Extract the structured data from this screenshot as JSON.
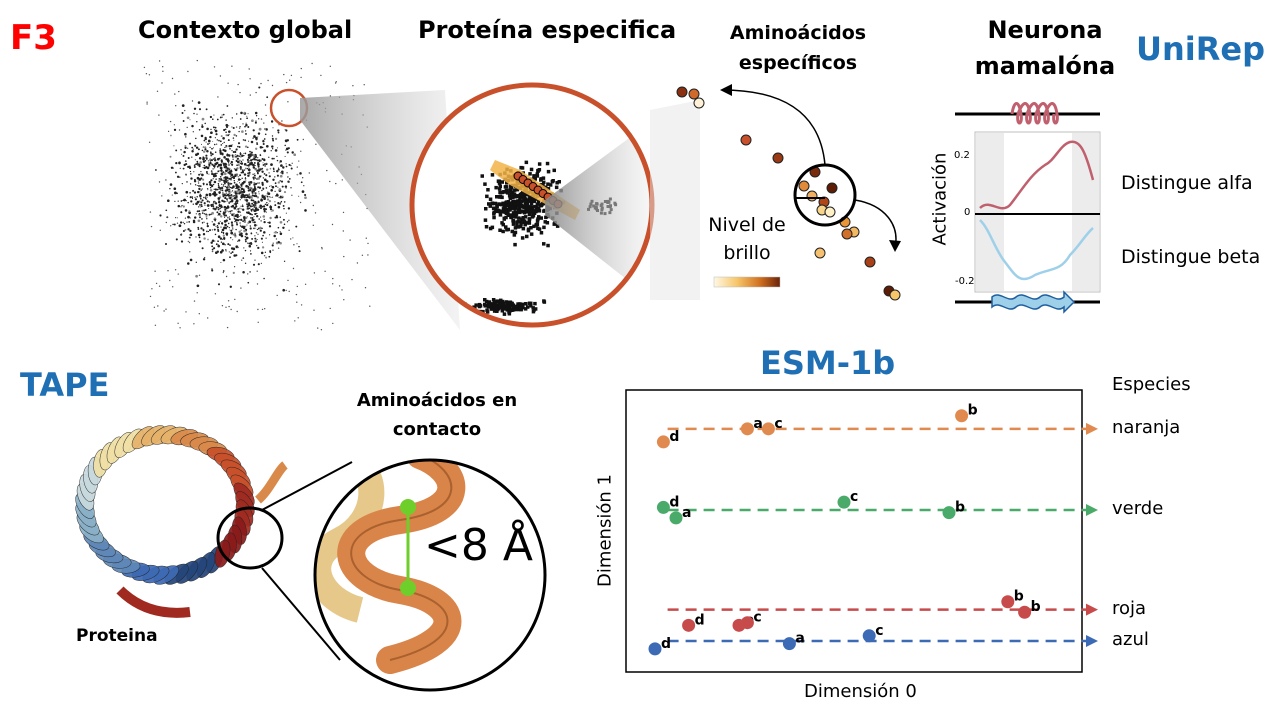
{
  "figure": {
    "label": "F3",
    "colors": {
      "label": "#ff0000",
      "model_title": "#1f6fb4",
      "ring": "#c8502a"
    }
  },
  "unirep": {
    "model_title": "UniRep",
    "global_title": "Contexto global",
    "protein_title": "Proteína especifica",
    "aa_title_line1": "Aminoácidos",
    "aa_title_line2": "específicos",
    "brightness_line1": "Nivel de",
    "brightness_line2": "brillo",
    "neuron_title_line1": "Neurona",
    "neuron_title_line2": "mamalóna",
    "activation_label": "Activación",
    "ticks": [
      "0.2",
      "0",
      "-0.2"
    ],
    "alpha_label": "Distingue alfa",
    "beta_label": "Distingue beta",
    "colors": {
      "alpha": "#c0606e",
      "beta": "#9fd0ea",
      "highlight": "#f2b347"
    }
  },
  "tape": {
    "model_title": "TAPE",
    "contact_line1": "Aminoácidos en",
    "contact_line2": "contacto",
    "distance_label": "<8 Å",
    "protein_label": "Proteina",
    "colors": {
      "contact_line": "#6fcf2a",
      "helix": "#d9854a"
    }
  },
  "esm": {
    "model_title": "ESM-1b",
    "legend_title": "Especies",
    "xlabel": "Dimensión 0",
    "ylabel": "Dimensión 1",
    "species": [
      {
        "name": "naranja",
        "color": "#e08a50",
        "line_y": 0.89,
        "points": [
          {
            "label": "d",
            "x": 0.02,
            "y": 0.84
          },
          {
            "label": "a",
            "x": 0.22,
            "y": 0.89
          },
          {
            "label": "c",
            "x": 0.27,
            "y": 0.89
          },
          {
            "label": "b",
            "x": 0.73,
            "y": 0.94
          }
        ]
      },
      {
        "name": "verde",
        "color": "#4aaa6a",
        "line_y": 0.58,
        "points": [
          {
            "label": "d",
            "x": 0.02,
            "y": 0.59
          },
          {
            "label": "a",
            "x": 0.05,
            "y": 0.55
          },
          {
            "label": "c",
            "x": 0.45,
            "y": 0.61
          },
          {
            "label": "b",
            "x": 0.7,
            "y": 0.57
          }
        ]
      },
      {
        "name": "roja",
        "color": "#c84b4b",
        "line_y": 0.2,
        "points": [
          {
            "label": "d",
            "x": 0.08,
            "y": 0.14
          },
          {
            "label": "a",
            "x": 0.2,
            "y": 0.14
          },
          {
            "label": "c",
            "x": 0.22,
            "y": 0.15
          },
          {
            "label": "b",
            "x": 0.84,
            "y": 0.23
          },
          {
            "label": "b",
            "x": 0.88,
            "y": 0.19
          }
        ]
      },
      {
        "name": "azul",
        "color": "#3d6ab4",
        "line_y": 0.08,
        "points": [
          {
            "label": "d",
            "x": 0.0,
            "y": 0.05
          },
          {
            "label": "a",
            "x": 0.32,
            "y": 0.07
          },
          {
            "label": "c",
            "x": 0.51,
            "y": 0.1
          }
        ]
      }
    ]
  },
  "chart_data": {
    "type": "scatter",
    "title": "ESM-1b",
    "xlabel": "Dimensión 0",
    "ylabel": "Dimensión 1",
    "legend_title": "Especies",
    "legend_placement": "right",
    "series": [
      {
        "name": "naranja",
        "points": [
          {
            "label": "d",
            "x": 0.02,
            "y": 0.84
          },
          {
            "label": "a",
            "x": 0.22,
            "y": 0.89
          },
          {
            "label": "c",
            "x": 0.27,
            "y": 0.89
          },
          {
            "label": "b",
            "x": 0.73,
            "y": 0.94
          }
        ]
      },
      {
        "name": "verde",
        "points": [
          {
            "label": "d",
            "x": 0.02,
            "y": 0.59
          },
          {
            "label": "a",
            "x": 0.05,
            "y": 0.55
          },
          {
            "label": "c",
            "x": 0.45,
            "y": 0.61
          },
          {
            "label": "b",
            "x": 0.7,
            "y": 0.57
          }
        ]
      },
      {
        "name": "roja",
        "points": [
          {
            "label": "d",
            "x": 0.08,
            "y": 0.14
          },
          {
            "label": "a",
            "x": 0.2,
            "y": 0.14
          },
          {
            "label": "c",
            "x": 0.22,
            "y": 0.15
          },
          {
            "label": "b",
            "x": 0.84,
            "y": 0.23
          },
          {
            "label": "b",
            "x": 0.88,
            "y": 0.19
          }
        ]
      },
      {
        "name": "azul",
        "points": [
          {
            "label": "d",
            "x": 0.0,
            "y": 0.05
          },
          {
            "label": "a",
            "x": 0.32,
            "y": 0.07
          },
          {
            "label": "c",
            "x": 0.51,
            "y": 0.1
          }
        ]
      }
    ],
    "grid": false
  }
}
